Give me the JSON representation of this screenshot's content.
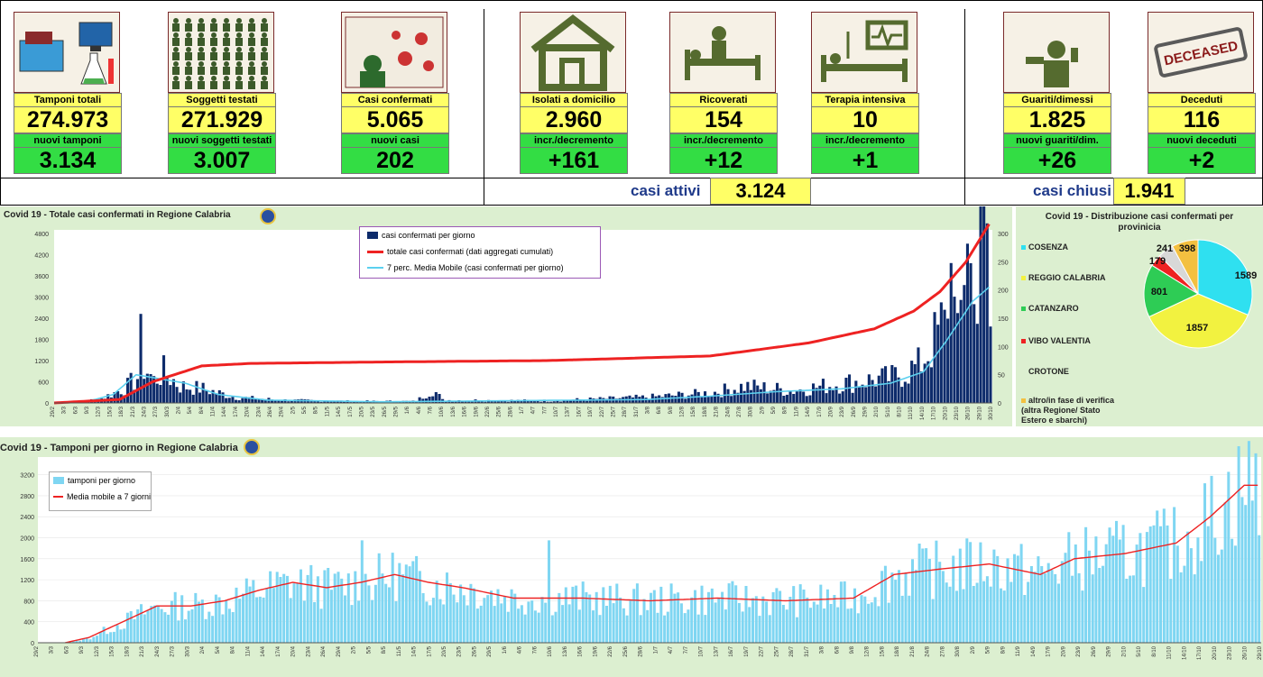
{
  "header": {
    "tiles": [
      {
        "icon": "laboratory-icon",
        "label": "Tamponi totali",
        "value": "274.973",
        "label2": "nuovi tamponi",
        "value2": "3.134"
      },
      {
        "icon": "people-grid-icon",
        "label": "Soggetti testati",
        "value": "271.929",
        "label2": "nuovi soggetti testati",
        "value2": "3.007"
      },
      {
        "icon": "virus-icon",
        "label": "Casi confermati",
        "value": "5.065",
        "label2": "nuovi casi",
        "value2": "202"
      },
      {
        "icon": "house-icon",
        "label": "Isolati a domicilio",
        "value": "2.960",
        "label2": "incr./decremento",
        "value2": "+161"
      },
      {
        "icon": "hospital-bed-icon",
        "label": "Ricoverati",
        "value": "154",
        "label2": "incr./decremento",
        "value2": "+12"
      },
      {
        "icon": "intensive-care-icon",
        "label": "Terapia intensiva",
        "value": "10",
        "label2": "incr./decremento",
        "value2": "+1"
      },
      {
        "icon": "thumbs-up-person-icon",
        "label": "Guariti/dimessi",
        "value": "1.825",
        "label2": "nuovi guariti/dim.",
        "value2": "+26"
      },
      {
        "icon": "deceased-stamp-icon",
        "stamp": "DECEASED",
        "label": "Deceduti",
        "value": "116",
        "label2": "nuovi deceduti",
        "value2": "+2"
      }
    ],
    "active_label": "casi attivi",
    "active_value": "3.124",
    "closed_label": "casi chiusi",
    "closed_value": "1.941"
  },
  "colors": {
    "bar_dark": "#0d2b6b",
    "red": "#ee2222",
    "cyan": "#5bd0ef",
    "bar_light": "#7fd6f2",
    "panel": "#dcefd0"
  },
  "chart_data": [
    {
      "type": "bar",
      "title": "Covid 19 - Totale casi confermati in Regione Calabria",
      "yticks_left": [
        "0",
        "600",
        "1200",
        "1800",
        "2400",
        "3000",
        "3600",
        "4200",
        "4800"
      ],
      "yticks_right": [
        "0",
        "50",
        "100",
        "150",
        "200",
        "250",
        "300"
      ],
      "ylim_left": [
        0,
        4800
      ],
      "ylim_right": [
        0,
        300
      ],
      "series": [
        {
          "name": "casi confermati per giorno",
          "axis": "right"
        },
        {
          "name": "totale casi confermati (dati aggregati cumulati)",
          "axis": "left"
        },
        {
          "name": "7 perc. Media Mobile (casi confermati per giorno)",
          "axis": "right"
        }
      ],
      "xlabels": [
        "29/2",
        "3/3",
        "6/3",
        "9/3",
        "12/3",
        "15/3",
        "18/3",
        "21/3",
        "24/3",
        "27/3",
        "30/3",
        "2/4",
        "5/4",
        "8/4",
        "11/4",
        "14/4",
        "17/4",
        "20/4",
        "23/4",
        "26/4",
        "29/4",
        "2/5",
        "5/5",
        "8/5",
        "11/5",
        "14/5",
        "17/5",
        "20/5",
        "23/5",
        "26/5",
        "29/5",
        "1/6",
        "4/6",
        "7/6",
        "10/6",
        "13/6",
        "16/6",
        "19/6",
        "22/6",
        "25/6",
        "28/6",
        "1/7",
        "4/7",
        "7/7",
        "10/7",
        "13/7",
        "16/7",
        "19/7",
        "22/7",
        "25/7",
        "28/7",
        "31/7",
        "3/8",
        "6/8",
        "9/8",
        "12/8",
        "15/8",
        "18/8",
        "21/8",
        "24/8",
        "27/8",
        "30/8",
        "2/9",
        "5/9",
        "8/9",
        "11/9",
        "14/9",
        "17/9",
        "20/9",
        "23/9",
        "26/9",
        "29/9",
        "2/10",
        "5/10",
        "8/10",
        "11/10",
        "14/10",
        "17/10",
        "20/10",
        "23/10",
        "26/10",
        "29/10",
        "30/10"
      ],
      "daily_profile": [
        [
          0,
          0
        ],
        [
          8,
          2
        ],
        [
          14,
          8
        ],
        [
          18,
          18
        ],
        [
          22,
          30
        ],
        [
          25,
          45
        ],
        [
          26,
          105
        ],
        [
          27,
          65
        ],
        [
          30,
          40
        ],
        [
          33,
          55
        ],
        [
          38,
          30
        ],
        [
          45,
          25
        ],
        [
          55,
          10
        ],
        [
          70,
          5
        ],
        [
          90,
          3
        ],
        [
          110,
          3
        ],
        [
          115,
          25
        ],
        [
          118,
          5
        ],
        [
          150,
          4
        ],
        [
          180,
          10
        ],
        [
          200,
          18
        ],
        [
          210,
          30
        ],
        [
          225,
          22
        ],
        [
          240,
          35
        ],
        [
          255,
          45
        ],
        [
          263,
          65
        ],
        [
          268,
          110
        ],
        [
          272,
          160
        ],
        [
          276,
          200
        ],
        [
          280,
          240
        ],
        [
          283,
          250
        ],
        [
          285,
          215
        ]
      ],
      "cumulative_profile": [
        [
          0,
          0
        ],
        [
          20,
          100
        ],
        [
          30,
          600
        ],
        [
          45,
          1050
        ],
        [
          60,
          1120
        ],
        [
          100,
          1160
        ],
        [
          150,
          1200
        ],
        [
          200,
          1330
        ],
        [
          230,
          1700
        ],
        [
          250,
          2100
        ],
        [
          262,
          2600
        ],
        [
          270,
          3150
        ],
        [
          278,
          4000
        ],
        [
          285,
          5065
        ]
      ],
      "ma_profile": [
        [
          0,
          0
        ],
        [
          10,
          2
        ],
        [
          18,
          15
        ],
        [
          25,
          50
        ],
        [
          30,
          45
        ],
        [
          40,
          35
        ],
        [
          50,
          15
        ],
        [
          65,
          5
        ],
        [
          100,
          2
        ],
        [
          180,
          6
        ],
        [
          200,
          12
        ],
        [
          220,
          20
        ],
        [
          240,
          25
        ],
        [
          255,
          35
        ],
        [
          265,
          55
        ],
        [
          272,
          110
        ],
        [
          280,
          180
        ],
        [
          285,
          205
        ]
      ]
    },
    {
      "type": "pie",
      "title": "Covid 19 - Distribuzione casi confermati per provinicia",
      "slices": [
        {
          "label": "COSENZA",
          "value": 1589,
          "color": "#2fe0f0"
        },
        {
          "label": "REGGIO CALABRIA",
          "value": 1857,
          "color": "#f2f240"
        },
        {
          "label": "CATANZARO",
          "value": 801,
          "color": "#2ecc55"
        },
        {
          "label": "VIBO VALENTIA",
          "value": 179,
          "color": "#ee2222"
        },
        {
          "label": "CROTONE",
          "value": 241,
          "color": "#d8d8d8"
        },
        {
          "label": "altro/in fase di verifica (altra Regione/ Stato Estero e sbarchi)",
          "value": 398,
          "color": "#f3c040"
        }
      ],
      "value_labels": [
        "1589",
        "1857",
        "801",
        "179",
        "241",
        "398"
      ]
    },
    {
      "type": "bar",
      "title": "Covid 19 - Tamponi per giorno in Regione Calabria",
      "yticks": [
        "0",
        "400",
        "800",
        "1200",
        "1600",
        "2000",
        "2400",
        "2800",
        "3200"
      ],
      "ylim": [
        0,
        3400
      ],
      "series": [
        {
          "name": "tamponi per giorno"
        },
        {
          "name": "Media mobile a 7 giorni"
        }
      ],
      "xlabels": [
        "29/2",
        "3/3",
        "6/3",
        "9/3",
        "12/3",
        "15/3",
        "18/3",
        "21/3",
        "24/3",
        "27/3",
        "30/3",
        "2/4",
        "5/4",
        "8/4",
        "11/4",
        "14/4",
        "17/4",
        "20/4",
        "23/4",
        "26/4",
        "29/4",
        "2/5",
        "5/5",
        "8/5",
        "11/5",
        "14/5",
        "17/5",
        "20/5",
        "23/5",
        "26/5",
        "29/5",
        "1/6",
        "4/6",
        "7/6",
        "10/6",
        "13/6",
        "16/6",
        "19/6",
        "22/6",
        "25/6",
        "28/6",
        "1/7",
        "4/7",
        "7/7",
        "10/7",
        "13/7",
        "16/7",
        "19/7",
        "22/7",
        "25/7",
        "28/7",
        "31/7",
        "3/8",
        "6/8",
        "9/8",
        "12/8",
        "15/8",
        "18/8",
        "21/8",
        "24/8",
        "27/8",
        "30/8",
        "2/9",
        "5/9",
        "8/9",
        "11/9",
        "14/9",
        "17/9",
        "20/9",
        "23/9",
        "26/9",
        "29/9",
        "2/10",
        "5/10",
        "8/10",
        "11/10",
        "14/10",
        "17/10",
        "20/10",
        "23/10",
        "26/10",
        "29/10"
      ],
      "ma_profile": [
        [
          0,
          0
        ],
        [
          8,
          0
        ],
        [
          15,
          100
        ],
        [
          25,
          400
        ],
        [
          35,
          700
        ],
        [
          45,
          700
        ],
        [
          55,
          800
        ],
        [
          65,
          1000
        ],
        [
          75,
          1150
        ],
        [
          85,
          1050
        ],
        [
          95,
          1150
        ],
        [
          105,
          1300
        ],
        [
          115,
          1150
        ],
        [
          125,
          1050
        ],
        [
          140,
          850
        ],
        [
          160,
          850
        ],
        [
          180,
          800
        ],
        [
          200,
          850
        ],
        [
          220,
          800
        ],
        [
          240,
          850
        ],
        [
          252,
          1300
        ],
        [
          265,
          1400
        ],
        [
          280,
          1500
        ],
        [
          295,
          1300
        ],
        [
          305,
          1600
        ],
        [
          320,
          1700
        ],
        [
          335,
          1900
        ],
        [
          345,
          2400
        ],
        [
          355,
          3000
        ]
      ]
    }
  ]
}
